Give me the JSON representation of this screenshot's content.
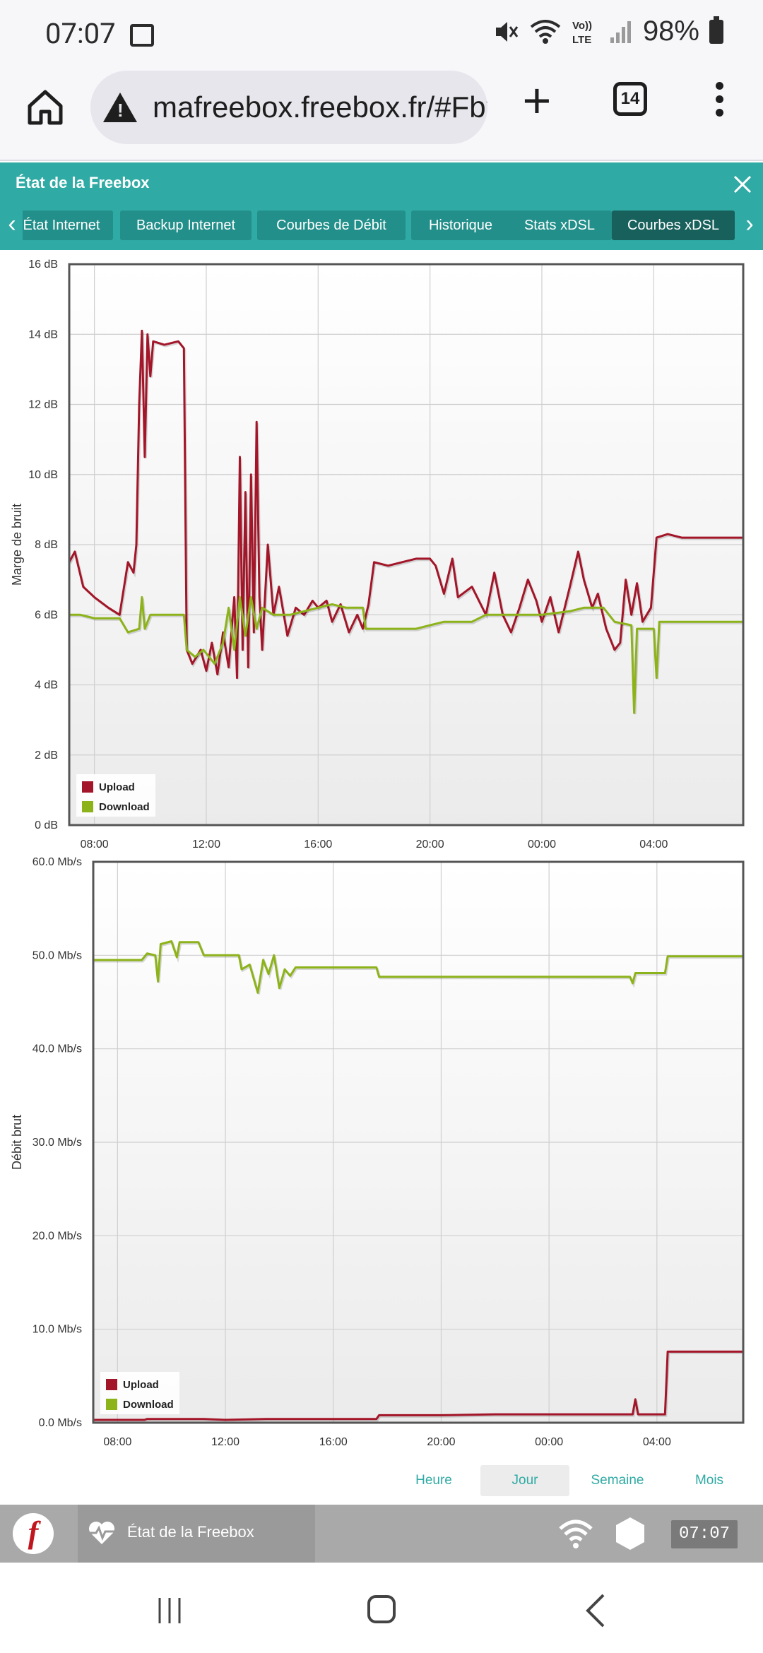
{
  "status_bar": {
    "time": "07:07",
    "battery_pct": "98%",
    "icons": [
      "gallery-icon",
      "mute-icon",
      "wifi-icon",
      "volte-icon",
      "signal-icon",
      "battery-icon"
    ],
    "volte_label": "Vo)) LTE"
  },
  "browser": {
    "url": "mafreebox.freebox.fr/#Fbx.os.app",
    "tab_count": "14"
  },
  "window": {
    "title": "État de la Freebox",
    "tabs": [
      {
        "label": "État Internet"
      },
      {
        "label": "Backup Internet"
      },
      {
        "label": "Courbes de Débit"
      },
      {
        "label": "Historique"
      },
      {
        "label": "Stats xDSL"
      },
      {
        "label": "Courbes xDSL"
      }
    ],
    "active_tab": "Courbes xDSL"
  },
  "periods": [
    "Heure",
    "Jour",
    "Semaine",
    "Mois"
  ],
  "active_period": "Jour",
  "taskbar": {
    "logo": "f",
    "app_label": "État de la Freebox",
    "clock": "07:07"
  },
  "colors": {
    "upload": "#a31528",
    "download": "#8db31a",
    "header": "#30aaa4"
  },
  "chart_data": [
    {
      "type": "line",
      "ylabel": "Marge de bruit",
      "y_unit": "dB",
      "yticks": [
        "0 dB",
        "2 dB",
        "4 dB",
        "6 dB",
        "8 dB",
        "10 dB",
        "12 dB",
        "14 dB",
        "16 dB"
      ],
      "ylim": [
        0,
        16
      ],
      "xticks": [
        "08:00",
        "12:00",
        "16:00",
        "20:00",
        "00:00",
        "04:00"
      ],
      "x_unit": "hours since midnight of first day",
      "xlim": [
        7.1,
        31.2
      ],
      "legend": [
        "Upload",
        "Download"
      ],
      "legend_position": "bottom-left",
      "grid": true,
      "series": [
        {
          "name": "Upload",
          "points": [
            [
              7.1,
              7.5
            ],
            [
              7.3,
              7.8
            ],
            [
              7.6,
              6.8
            ],
            [
              8.0,
              6.5
            ],
            [
              8.5,
              6.2
            ],
            [
              8.9,
              6.0
            ],
            [
              9.2,
              7.5
            ],
            [
              9.4,
              7.2
            ],
            [
              9.5,
              8.0
            ],
            [
              9.6,
              12.0
            ],
            [
              9.7,
              14.1
            ],
            [
              9.8,
              10.5
            ],
            [
              9.9,
              14.0
            ],
            [
              10.0,
              12.8
            ],
            [
              10.1,
              13.8
            ],
            [
              10.5,
              13.7
            ],
            [
              11.0,
              13.8
            ],
            [
              11.2,
              13.6
            ],
            [
              11.3,
              5.0
            ],
            [
              11.5,
              4.6
            ],
            [
              11.8,
              5.0
            ],
            [
              12.0,
              4.4
            ],
            [
              12.2,
              5.2
            ],
            [
              12.4,
              4.3
            ],
            [
              12.6,
              5.5
            ],
            [
              12.8,
              4.5
            ],
            [
              13.0,
              6.5
            ],
            [
              13.1,
              4.2
            ],
            [
              13.2,
              10.5
            ],
            [
              13.3,
              5.0
            ],
            [
              13.4,
              9.5
            ],
            [
              13.5,
              4.5
            ],
            [
              13.6,
              10.0
            ],
            [
              13.7,
              5.5
            ],
            [
              13.8,
              11.5
            ],
            [
              13.9,
              6.5
            ],
            [
              14.0,
              5.0
            ],
            [
              14.2,
              8.0
            ],
            [
              14.4,
              6.0
            ],
            [
              14.6,
              6.8
            ],
            [
              14.9,
              5.4
            ],
            [
              15.2,
              6.2
            ],
            [
              15.5,
              6.0
            ],
            [
              15.8,
              6.4
            ],
            [
              16.0,
              6.2
            ],
            [
              16.3,
              6.4
            ],
            [
              16.5,
              5.8
            ],
            [
              16.8,
              6.3
            ],
            [
              17.1,
              5.5
            ],
            [
              17.4,
              6.0
            ],
            [
              17.6,
              5.6
            ],
            [
              17.8,
              6.3
            ],
            [
              18.0,
              7.5
            ],
            [
              18.5,
              7.4
            ],
            [
              19.0,
              7.5
            ],
            [
              19.5,
              7.6
            ],
            [
              20.0,
              7.6
            ],
            [
              20.2,
              7.4
            ],
            [
              20.5,
              6.6
            ],
            [
              20.8,
              7.6
            ],
            [
              21.0,
              6.5
            ],
            [
              21.5,
              6.8
            ],
            [
              22.0,
              6.0
            ],
            [
              22.3,
              7.2
            ],
            [
              22.6,
              6.0
            ],
            [
              22.9,
              5.5
            ],
            [
              23.2,
              6.2
            ],
            [
              23.5,
              7.0
            ],
            [
              23.8,
              6.4
            ],
            [
              24.0,
              5.8
            ],
            [
              24.3,
              6.5
            ],
            [
              24.6,
              5.5
            ],
            [
              25.0,
              6.8
            ],
            [
              25.3,
              7.8
            ],
            [
              25.5,
              7.0
            ],
            [
              25.8,
              6.2
            ],
            [
              26.0,
              6.6
            ],
            [
              26.3,
              5.6
            ],
            [
              26.6,
              5.0
            ],
            [
              26.8,
              5.2
            ],
            [
              27.0,
              7.0
            ],
            [
              27.2,
              6.0
            ],
            [
              27.4,
              6.9
            ],
            [
              27.6,
              5.8
            ],
            [
              27.9,
              6.2
            ],
            [
              28.1,
              8.2
            ],
            [
              28.5,
              8.3
            ],
            [
              29.0,
              8.2
            ],
            [
              30.0,
              8.2
            ],
            [
              31.2,
              8.2
            ]
          ]
        },
        {
          "name": "Download",
          "points": [
            [
              7.1,
              6.0
            ],
            [
              7.5,
              6.0
            ],
            [
              8.0,
              5.9
            ],
            [
              8.9,
              5.9
            ],
            [
              9.2,
              5.5
            ],
            [
              9.6,
              5.6
            ],
            [
              9.7,
              6.5
            ],
            [
              9.8,
              5.6
            ],
            [
              10.0,
              6.0
            ],
            [
              10.5,
              6.0
            ],
            [
              11.2,
              6.0
            ],
            [
              11.3,
              5.0
            ],
            [
              11.6,
              4.8
            ],
            [
              11.9,
              5.0
            ],
            [
              12.3,
              4.6
            ],
            [
              12.6,
              5.2
            ],
            [
              12.8,
              6.2
            ],
            [
              13.0,
              5.0
            ],
            [
              13.2,
              6.5
            ],
            [
              13.4,
              5.4
            ],
            [
              13.6,
              6.5
            ],
            [
              13.8,
              5.6
            ],
            [
              14.0,
              6.2
            ],
            [
              14.4,
              6.0
            ],
            [
              15.0,
              6.0
            ],
            [
              15.5,
              6.1
            ],
            [
              16.0,
              6.2
            ],
            [
              16.5,
              6.3
            ],
            [
              17.0,
              6.2
            ],
            [
              17.6,
              6.2
            ],
            [
              17.7,
              5.6
            ],
            [
              18.0,
              5.6
            ],
            [
              19.0,
              5.6
            ],
            [
              19.5,
              5.6
            ],
            [
              20.0,
              5.7
            ],
            [
              20.5,
              5.8
            ],
            [
              21.5,
              5.8
            ],
            [
              22.0,
              6.0
            ],
            [
              23.0,
              6.0
            ],
            [
              24.0,
              6.0
            ],
            [
              25.0,
              6.1
            ],
            [
              25.5,
              6.2
            ],
            [
              26.2,
              6.2
            ],
            [
              26.6,
              5.8
            ],
            [
              27.2,
              5.7
            ],
            [
              27.3,
              3.2
            ],
            [
              27.4,
              5.6
            ],
            [
              28.0,
              5.6
            ],
            [
              28.1,
              4.2
            ],
            [
              28.2,
              5.8
            ],
            [
              29.0,
              5.8
            ],
            [
              30.0,
              5.8
            ],
            [
              31.2,
              5.8
            ]
          ]
        }
      ]
    },
    {
      "type": "line",
      "ylabel": "Débit brut",
      "y_unit": "Mb/s",
      "yticks": [
        "0.0 Mb/s",
        "10.0 Mb/s",
        "20.0 Mb/s",
        "30.0 Mb/s",
        "40.0 Mb/s",
        "50.0 Mb/s",
        "60.0 Mb/s"
      ],
      "ylim": [
        0,
        60
      ],
      "xticks": [
        "08:00",
        "12:00",
        "16:00",
        "20:00",
        "00:00",
        "04:00"
      ],
      "xlim": [
        7.1,
        31.2
      ],
      "legend": [
        "Upload",
        "Download"
      ],
      "legend_position": "bottom-left",
      "grid": true,
      "series": [
        {
          "name": "Upload",
          "points": [
            [
              7.1,
              0.3
            ],
            [
              9.0,
              0.3
            ],
            [
              9.1,
              0.4
            ],
            [
              11.2,
              0.4
            ],
            [
              12.0,
              0.3
            ],
            [
              13.5,
              0.4
            ],
            [
              15.0,
              0.4
            ],
            [
              17.6,
              0.4
            ],
            [
              17.7,
              0.8
            ],
            [
              20.0,
              0.8
            ],
            [
              22.0,
              0.9
            ],
            [
              24.5,
              0.9
            ],
            [
              27.1,
              0.9
            ],
            [
              27.2,
              2.5
            ],
            [
              27.3,
              0.9
            ],
            [
              28.3,
              0.9
            ],
            [
              28.4,
              7.6
            ],
            [
              31.2,
              7.6
            ]
          ]
        },
        {
          "name": "Download",
          "points": [
            [
              7.1,
              49.5
            ],
            [
              8.9,
              49.5
            ],
            [
              9.1,
              50.2
            ],
            [
              9.4,
              50.0
            ],
            [
              9.5,
              47.2
            ],
            [
              9.6,
              51.2
            ],
            [
              10.0,
              51.5
            ],
            [
              10.2,
              49.8
            ],
            [
              10.3,
              51.4
            ],
            [
              11.0,
              51.4
            ],
            [
              11.2,
              50.0
            ],
            [
              12.5,
              50.0
            ],
            [
              12.6,
              48.5
            ],
            [
              12.9,
              49.0
            ],
            [
              13.2,
              46.0
            ],
            [
              13.4,
              49.5
            ],
            [
              13.6,
              48.0
            ],
            [
              13.8,
              50.0
            ],
            [
              14.0,
              46.5
            ],
            [
              14.2,
              48.5
            ],
            [
              14.4,
              47.8
            ],
            [
              14.6,
              48.7
            ],
            [
              15.0,
              48.7
            ],
            [
              17.6,
              48.7
            ],
            [
              17.7,
              47.7
            ],
            [
              20.0,
              47.7
            ],
            [
              24.0,
              47.7
            ],
            [
              27.0,
              47.7
            ],
            [
              27.1,
              47.0
            ],
            [
              27.2,
              48.1
            ],
            [
              28.3,
              48.1
            ],
            [
              28.4,
              49.9
            ],
            [
              31.2,
              49.9
            ]
          ]
        }
      ]
    }
  ]
}
